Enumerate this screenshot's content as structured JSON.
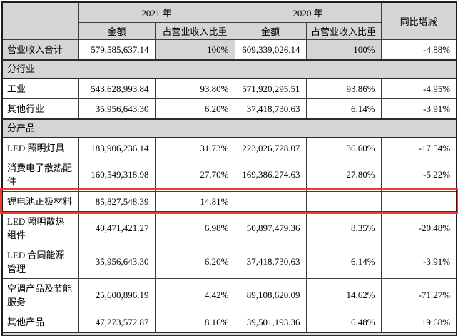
{
  "colors": {
    "highlight_red": "#ee3a31",
    "header_gray": "#d5d5d5"
  },
  "table": {
    "header": {
      "year_2021": "2021 年",
      "year_2020": "2020 年",
      "yoy": "同比增减",
      "amount": "金额",
      "ratio": "占营业收入比重"
    },
    "rows": [
      {
        "type": "data",
        "shaded": true,
        "label": "营业收入合计",
        "amount_2021": "579,585,637.14",
        "ratio_2021": "100%",
        "amount_2020": "609,339,026.14",
        "ratio_2020": "100%",
        "yoy": "-4.88%"
      },
      {
        "type": "section",
        "label": "分行业"
      },
      {
        "type": "data",
        "label": "工业",
        "amount_2021": "543,628,993.84",
        "ratio_2021": "93.80%",
        "amount_2020": "571,920,295.51",
        "ratio_2020": "93.86%",
        "yoy": "-4.95%"
      },
      {
        "type": "data",
        "label": "其他行业",
        "amount_2021": "35,956,643.30",
        "ratio_2021": "6.20%",
        "amount_2020": "37,418,730.63",
        "ratio_2020": "6.14%",
        "yoy": "-3.91%"
      },
      {
        "type": "section",
        "label": "分产品"
      },
      {
        "type": "data",
        "label": "LED 照明灯具",
        "amount_2021": "183,906,236.14",
        "ratio_2021": "31.73%",
        "amount_2020": "223,026,728.07",
        "ratio_2020": "36.60%",
        "yoy": "-17.54%"
      },
      {
        "type": "data",
        "label": "消费电子散热配件",
        "amount_2021": "160,549,318.98",
        "ratio_2021": "27.70%",
        "amount_2020": "169,386,274.63",
        "ratio_2020": "27.80%",
        "yoy": "-5.22%"
      },
      {
        "type": "data",
        "highlighted": true,
        "label": "锂电池正极材料",
        "amount_2021": "85,827,548.39",
        "ratio_2021": "14.81%",
        "amount_2020": "",
        "ratio_2020": "",
        "yoy": ""
      },
      {
        "type": "data",
        "label": "LED 照明散热组件",
        "amount_2021": "40,471,421.27",
        "ratio_2021": "6.98%",
        "amount_2020": "50,897,479.36",
        "ratio_2020": "8.35%",
        "yoy": "-20.48%"
      },
      {
        "type": "data",
        "label": "LED 合同能源管理",
        "amount_2021": "35,956,643.30",
        "ratio_2021": "6.20%",
        "amount_2020": "37,418,730.63",
        "ratio_2020": "6.14%",
        "yoy": "-3.91%"
      },
      {
        "type": "data",
        "label": "空调产品及节能服务",
        "amount_2021": "25,600,896.19",
        "ratio_2021": "4.42%",
        "amount_2020": "89,108,620.09",
        "ratio_2020": "14.62%",
        "yoy": "-71.27%"
      },
      {
        "type": "data",
        "label": "其他产品",
        "amount_2021": "47,273,572.87",
        "ratio_2021": "8.16%",
        "amount_2020": "39,501,193.36",
        "ratio_2020": "6.48%",
        "yoy": "19.68%"
      },
      {
        "type": "section",
        "partial": true,
        "label": ""
      }
    ]
  }
}
